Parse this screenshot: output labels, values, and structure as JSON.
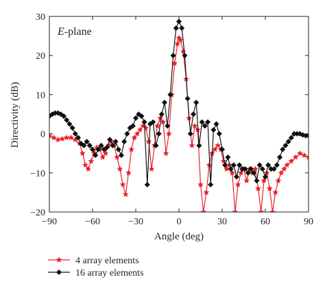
{
  "chart_data": {
    "type": "line",
    "annotation": {
      "prefix": "E",
      "suffix": "-plane"
    },
    "xlabel": "Angle (deg)",
    "ylabel": "Directivity (dB)",
    "xlim": [
      -90,
      90
    ],
    "ylim": [
      -20,
      30
    ],
    "x_ticks": [
      -90,
      -60,
      -30,
      0,
      30,
      60,
      90
    ],
    "y_ticks": [
      -20,
      -10,
      0,
      10,
      20,
      30
    ],
    "x_tick_labels": [
      "−90",
      "−60",
      "−30",
      "0",
      "30",
      "60",
      "90"
    ],
    "y_tick_labels": [
      "−20",
      "−10",
      "0",
      "10",
      "20",
      "30"
    ],
    "grid": false,
    "legend_position": "bottom-left, below plot",
    "series": [
      {
        "name": "4 array elements",
        "color": "#e8202a",
        "marker": "star",
        "points": [
          [
            -90,
            -0.5
          ],
          [
            -87,
            -1
          ],
          [
            -84,
            -1.5
          ],
          [
            -81,
            -1.3
          ],
          [
            -78,
            -1
          ],
          [
            -75,
            -1
          ],
          [
            -72,
            -1.5
          ],
          [
            -69,
            -2.5
          ],
          [
            -67,
            -5
          ],
          [
            -65,
            -8
          ],
          [
            -63,
            -9
          ],
          [
            -61,
            -7
          ],
          [
            -59,
            -5
          ],
          [
            -57,
            -3.5
          ],
          [
            -55,
            -4
          ],
          [
            -53,
            -6
          ],
          [
            -51,
            -5
          ],
          [
            -49,
            -3
          ],
          [
            -47,
            -2
          ],
          [
            -45,
            -3
          ],
          [
            -43,
            -6
          ],
          [
            -41,
            -9
          ],
          [
            -39,
            -13
          ],
          [
            -37,
            -15.5
          ],
          [
            -35,
            -10
          ],
          [
            -33,
            -4
          ],
          [
            -31,
            -1
          ],
          [
            -29,
            0
          ],
          [
            -27,
            1
          ],
          [
            -25,
            2
          ],
          [
            -23,
            1.5
          ],
          [
            -21,
            -2
          ],
          [
            -19,
            -9
          ],
          [
            -17,
            -3
          ],
          [
            -15,
            2
          ],
          [
            -13,
            4
          ],
          [
            -11,
            3
          ],
          [
            -9,
            -5
          ],
          [
            -7,
            0
          ],
          [
            -5,
            10
          ],
          [
            -3,
            18
          ],
          [
            -1,
            23
          ],
          [
            0,
            24.5
          ],
          [
            1,
            24
          ],
          [
            3,
            21
          ],
          [
            5,
            14
          ],
          [
            7,
            4
          ],
          [
            9,
            -3
          ],
          [
            11,
            2
          ],
          [
            13,
            1
          ],
          [
            15,
            -13
          ],
          [
            17,
            -20
          ],
          [
            19,
            -15
          ],
          [
            21,
            -8
          ],
          [
            23,
            -5
          ],
          [
            25,
            -4
          ],
          [
            27,
            -3
          ],
          [
            29,
            -4
          ],
          [
            31,
            -7
          ],
          [
            33,
            -9
          ],
          [
            35,
            -8
          ],
          [
            37,
            -10
          ],
          [
            39,
            -20
          ],
          [
            41,
            -13
          ],
          [
            43,
            -10
          ],
          [
            45,
            -9
          ],
          [
            47,
            -12
          ],
          [
            49,
            -9
          ],
          [
            51,
            -10
          ],
          [
            53,
            -9
          ],
          [
            55,
            -14
          ],
          [
            57,
            -20
          ],
          [
            59,
            -12
          ],
          [
            61,
            -10
          ],
          [
            63,
            -14
          ],
          [
            65,
            -20
          ],
          [
            67,
            -15
          ],
          [
            69,
            -12
          ],
          [
            71,
            -10
          ],
          [
            73,
            -9
          ],
          [
            75,
            -8
          ],
          [
            78,
            -7
          ],
          [
            81,
            -6
          ],
          [
            84,
            -5
          ],
          [
            87,
            -5.5
          ],
          [
            90,
            -6
          ]
        ]
      },
      {
        "name": "16 array elements",
        "color": "#111111",
        "marker": "diamond",
        "points": [
          [
            -90,
            4.5
          ],
          [
            -88,
            5
          ],
          [
            -86,
            5.3
          ],
          [
            -84,
            5.3
          ],
          [
            -82,
            5
          ],
          [
            -80,
            4.5
          ],
          [
            -78,
            3.5
          ],
          [
            -76,
            2.5
          ],
          [
            -74,
            1.5
          ],
          [
            -72,
            0
          ],
          [
            -70,
            -1
          ],
          [
            -68,
            -2.5
          ],
          [
            -66,
            -3
          ],
          [
            -64,
            -2
          ],
          [
            -62,
            -3
          ],
          [
            -60,
            -4
          ],
          [
            -58,
            -5.5
          ],
          [
            -56,
            -4
          ],
          [
            -54,
            -3
          ],
          [
            -52,
            -4
          ],
          [
            -50,
            -3.5
          ],
          [
            -48,
            -1.5
          ],
          [
            -46,
            -3
          ],
          [
            -44,
            -2
          ],
          [
            -42,
            -4
          ],
          [
            -40,
            -5.5
          ],
          [
            -38,
            -2
          ],
          [
            -36,
            0
          ],
          [
            -34,
            1.5
          ],
          [
            -32,
            2
          ],
          [
            -30,
            4
          ],
          [
            -28,
            5
          ],
          [
            -26,
            4.5
          ],
          [
            -24,
            3
          ],
          [
            -22,
            -13
          ],
          [
            -20,
            2.5
          ],
          [
            -18,
            3
          ],
          [
            -16,
            -3
          ],
          [
            -14,
            0
          ],
          [
            -12,
            5
          ],
          [
            -10,
            8
          ],
          [
            -8,
            2
          ],
          [
            -6,
            10
          ],
          [
            -4,
            20
          ],
          [
            -2,
            27
          ],
          [
            0,
            28.7
          ],
          [
            2,
            27
          ],
          [
            4,
            20
          ],
          [
            6,
            9
          ],
          [
            8,
            0
          ],
          [
            10,
            5
          ],
          [
            12,
            8
          ],
          [
            14,
            -3
          ],
          [
            16,
            3
          ],
          [
            18,
            2
          ],
          [
            20,
            3
          ],
          [
            22,
            -13
          ],
          [
            24,
            1
          ],
          [
            26,
            2.5
          ],
          [
            28,
            0
          ],
          [
            30,
            -4
          ],
          [
            32,
            -8
          ],
          [
            34,
            -6
          ],
          [
            36,
            -9
          ],
          [
            38,
            -8
          ],
          [
            40,
            -11
          ],
          [
            42,
            -8
          ],
          [
            44,
            -9
          ],
          [
            46,
            -9
          ],
          [
            48,
            -10
          ],
          [
            50,
            -9
          ],
          [
            52,
            -10
          ],
          [
            54,
            -12
          ],
          [
            56,
            -8
          ],
          [
            58,
            -9
          ],
          [
            60,
            -11
          ],
          [
            62,
            -8
          ],
          [
            64,
            -9
          ],
          [
            66,
            -9
          ],
          [
            68,
            -8
          ],
          [
            70,
            -6
          ],
          [
            72,
            -4
          ],
          [
            74,
            -3
          ],
          [
            76,
            -2
          ],
          [
            78,
            -1
          ],
          [
            80,
            0
          ],
          [
            82,
            0
          ],
          [
            84,
            0
          ],
          [
            86,
            -0.3
          ],
          [
            88,
            -0.5
          ],
          [
            90,
            -0.5
          ]
        ]
      }
    ]
  }
}
